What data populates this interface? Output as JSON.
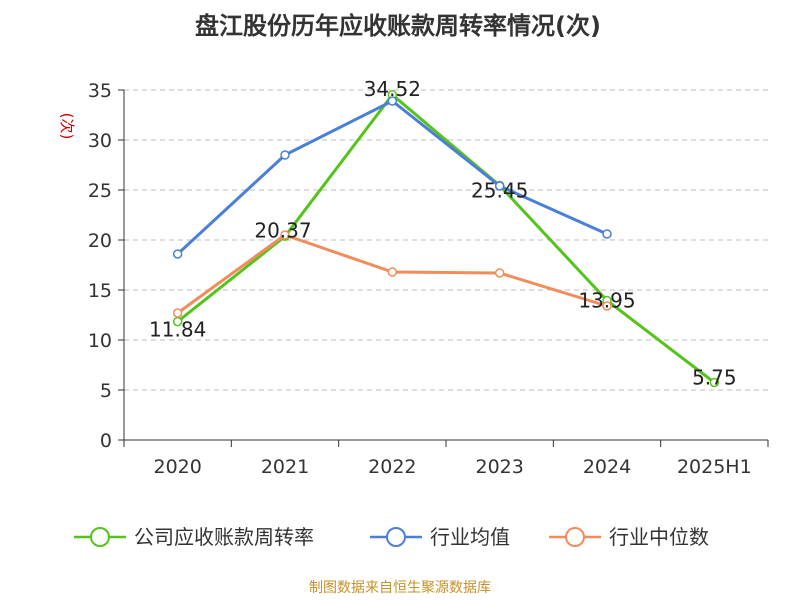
{
  "chart_data": {
    "type": "line",
    "title": "盘江股份历年应收账款周转率情况(次)",
    "xlabel": "",
    "ylabel": "(次)",
    "categories": [
      "2020",
      "2021",
      "2022",
      "2023",
      "2024",
      "2025H1"
    ],
    "ylim": [
      0,
      35
    ],
    "yticks": [
      0,
      5,
      10,
      15,
      20,
      25,
      30,
      35
    ],
    "grid": true,
    "legend_position": "bottom",
    "series": [
      {
        "name": "公司应收账款周转率",
        "color": "#52c41a",
        "values": [
          11.84,
          20.37,
          34.52,
          25.45,
          13.95,
          5.75
        ],
        "labels": [
          "11.84",
          "20.37",
          "34.52",
          "25.45",
          "13.95",
          "5.75"
        ]
      },
      {
        "name": "行业均值",
        "color": "#4a7fd8",
        "values": [
          18.6,
          28.5,
          33.9,
          25.4,
          20.6,
          null
        ]
      },
      {
        "name": "行业中位数",
        "color": "#f28c5a",
        "values": [
          12.7,
          20.5,
          16.8,
          16.7,
          13.4,
          null
        ]
      }
    ],
    "source": "制图数据来自恒生聚源数据库"
  }
}
